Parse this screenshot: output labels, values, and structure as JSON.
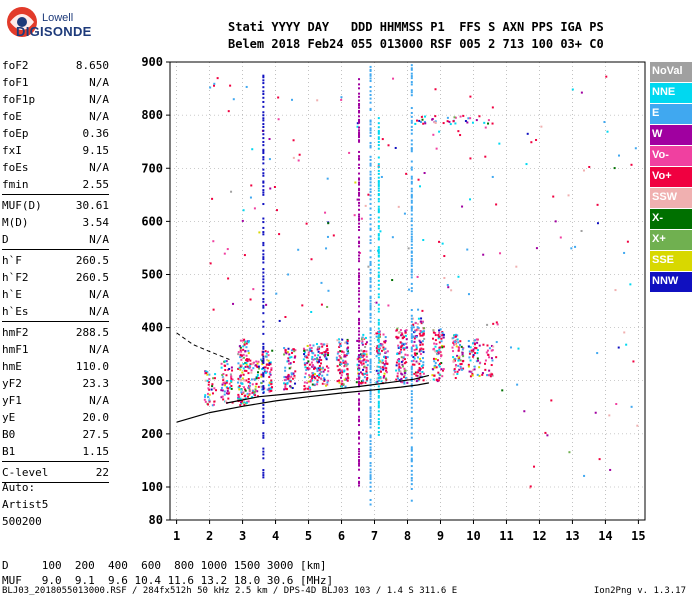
{
  "logo": {
    "line1": "Lowell",
    "line2": "DIGISONDE"
  },
  "header": {
    "line1": "Stati YYYY DAY   DDD HHMMSS P1  FFS S AXN PPS IGA PS",
    "line2": "Belem 2018 Feb24 055 013000 RSF 005 2 713 100 03+ C0"
  },
  "params": [
    {
      "label": "foF2",
      "value": "8.650"
    },
    {
      "label": "foF1",
      "value": "N/A"
    },
    {
      "label": "foF1p",
      "value": "N/A"
    },
    {
      "label": "foE",
      "value": "N/A"
    },
    {
      "label": "foEp",
      "value": "0.36"
    },
    {
      "label": "fxI",
      "value": "9.15"
    },
    {
      "label": "foEs",
      "value": "N/A"
    },
    {
      "label": "fmin",
      "value": "2.55"
    },
    {
      "sep": true
    },
    {
      "label": "MUF(D)",
      "value": "30.61"
    },
    {
      "label": "M(D)",
      "value": "3.54"
    },
    {
      "label": "D",
      "value": "N/A"
    },
    {
      "sep": true
    },
    {
      "label": "h`F",
      "value": "260.5"
    },
    {
      "label": "h`F2",
      "value": "260.5"
    },
    {
      "label": "h`E",
      "value": "N/A"
    },
    {
      "label": "h`Es",
      "value": "N/A"
    },
    {
      "sep": true
    },
    {
      "label": "hmF2",
      "value": "288.5"
    },
    {
      "label": "hmF1",
      "value": "N/A"
    },
    {
      "label": "hmE",
      "value": "110.0"
    },
    {
      "label": "yF2",
      "value": "23.3"
    },
    {
      "label": "yF1",
      "value": "N/A"
    },
    {
      "label": "yE",
      "value": "20.0"
    },
    {
      "label": "B0",
      "value": "27.5"
    },
    {
      "label": "B1",
      "value": "1.15"
    },
    {
      "sep": true
    },
    {
      "label": "C-level",
      "value": "22"
    },
    {
      "sep": true
    }
  ],
  "auto": {
    "line1": "Auto:",
    "line2": "Artist5",
    "line3": "500200"
  },
  "footer": {
    "d_line": "D     100  200  400  600  800 1000 1500 3000 [km]",
    "muf_line": "MUF   9.0  9.1  9.6 10.4 11.6 13.2 18.0 30.6 [MHz]",
    "file_line": "BLJ03_2018055013000.RSF / 284fx512h 50 kHz 2.5 km / DPS-4D BLJ03 103 / 1.4 S 311.6 E",
    "version": "Ion2Png v. 1.3.17"
  },
  "legend": [
    {
      "label": "NoVal",
      "color": "#a0a0a0"
    },
    {
      "label": "NNE",
      "color": "#00d8f0"
    },
    {
      "label": "E",
      "color": "#40a8f0"
    },
    {
      "label": "W",
      "color": "#a000a0"
    },
    {
      "label": "Vo-",
      "color": "#f040a0"
    },
    {
      "label": "Vo+",
      "color": "#f00040"
    },
    {
      "label": "SSW",
      "color": "#f0b0b0"
    },
    {
      "label": "X-",
      "color": "#007000"
    },
    {
      "label": "X+",
      "color": "#70b050"
    },
    {
      "label": "SSE",
      "color": "#d8d800"
    },
    {
      "label": "NNW",
      "color": "#1010c0"
    }
  ],
  "chart_data": {
    "type": "scatter",
    "x_ticks": [
      "1",
      "2",
      "3",
      "4",
      "5",
      "6",
      "7",
      "8",
      "9",
      "10",
      "11",
      "12",
      "13",
      "14",
      "15"
    ],
    "y_ticks": [
      "80",
      "100",
      "200",
      "300",
      "400",
      "500",
      "600",
      "700",
      "800",
      "900"
    ],
    "xlim": [
      0.8,
      15.2
    ],
    "ylim": [
      80,
      900
    ],
    "grid": true,
    "clusters": [
      {
        "f": 2.0,
        "h0": 250,
        "h1": 320,
        "n": 40
      },
      {
        "f": 2.5,
        "h0": 260,
        "h1": 340,
        "n": 60
      },
      {
        "f": 3.0,
        "h0": 255,
        "h1": 380,
        "n": 120
      },
      {
        "f": 3.3,
        "h0": 270,
        "h1": 340,
        "n": 60
      },
      {
        "f": 3.7,
        "h0": 280,
        "h1": 360,
        "n": 70
      },
      {
        "f": 4.4,
        "h0": 285,
        "h1": 365,
        "n": 70
      },
      {
        "f": 5.0,
        "h0": 285,
        "h1": 370,
        "n": 80
      },
      {
        "f": 5.4,
        "h0": 290,
        "h1": 375,
        "n": 80
      },
      {
        "f": 6.0,
        "h0": 290,
        "h1": 380,
        "n": 90
      },
      {
        "f": 6.6,
        "h0": 295,
        "h1": 390,
        "n": 90
      },
      {
        "f": 7.2,
        "h0": 295,
        "h1": 395,
        "n": 90
      },
      {
        "f": 7.8,
        "h0": 295,
        "h1": 400,
        "n": 100
      },
      {
        "f": 8.3,
        "h0": 300,
        "h1": 420,
        "n": 110
      },
      {
        "f": 8.9,
        "h0": 300,
        "h1": 400,
        "n": 80
      },
      {
        "f": 9.5,
        "h0": 305,
        "h1": 390,
        "n": 70
      },
      {
        "f": 10.0,
        "h0": 310,
        "h1": 380,
        "n": 50
      },
      {
        "f": 10.4,
        "h0": 310,
        "h1": 370,
        "n": 30
      }
    ],
    "vertical_streaks": [
      {
        "f": 6.85,
        "h0": 90,
        "h1": 900,
        "color": "#40a8f0"
      },
      {
        "f": 8.1,
        "h0": 90,
        "h1": 900,
        "color": "#40a8f0"
      },
      {
        "f": 6.5,
        "h0": 100,
        "h1": 870,
        "color": "#a000a0"
      },
      {
        "f": 7.1,
        "h0": 200,
        "h1": 800,
        "color": "#00d8f0"
      },
      {
        "f": 3.6,
        "h0": 120,
        "h1": 880,
        "color": "#1010c0"
      }
    ],
    "profile_curve": {
      "x": [
        1.0,
        2.0,
        3.0,
        4.0,
        5.0,
        6.0,
        7.0,
        7.8,
        8.3,
        8.65
      ],
      "y": [
        222,
        240,
        252,
        262,
        270,
        277,
        283,
        288,
        292,
        296
      ]
    },
    "virtual_height_trace": {
      "x": [
        2.5,
        3.5,
        4.5,
        5.5,
        6.5,
        7.5,
        8.2,
        8.65
      ],
      "y": [
        258,
        270,
        276,
        282,
        289,
        297,
        303,
        310
      ]
    },
    "dashed_trace": {
      "x": [
        1.0,
        1.5,
        2.0,
        2.6
      ],
      "y": [
        390,
        368,
        355,
        340
      ]
    }
  }
}
